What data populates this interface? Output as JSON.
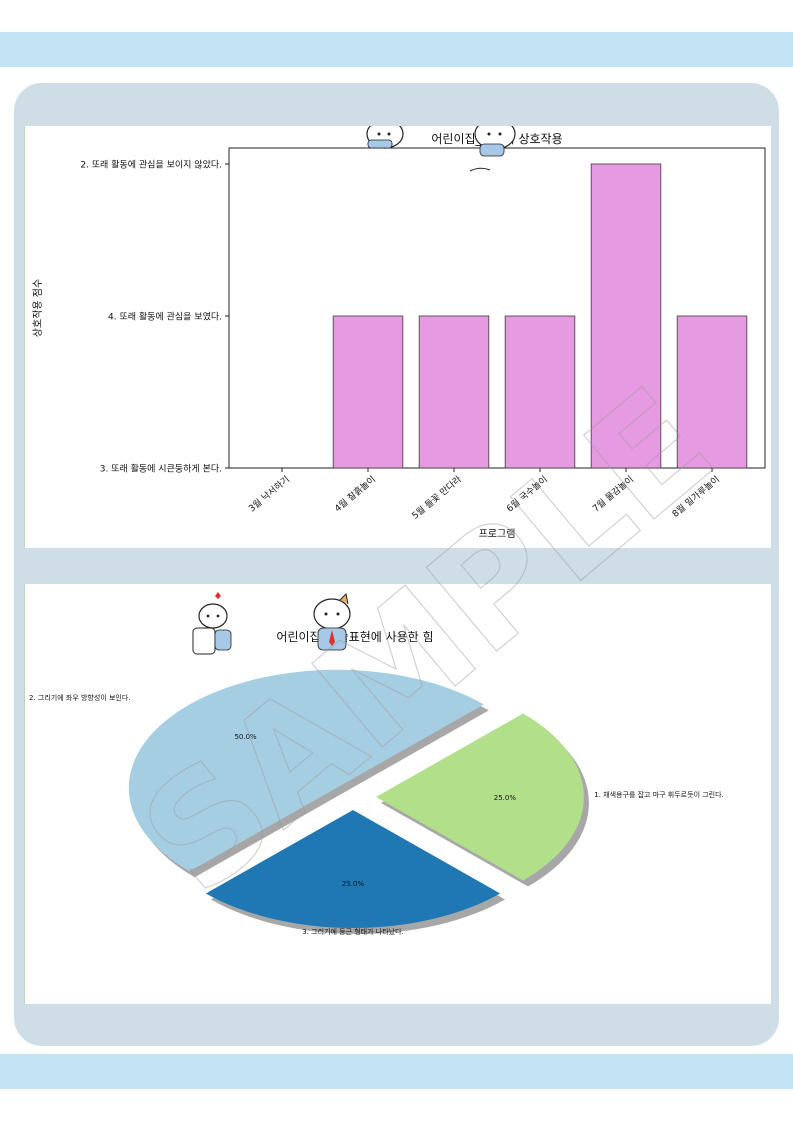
{
  "chart_data": [
    {
      "type": "bar",
      "title": "어린이집_사회적 상호작용",
      "xlabel": "프로그램",
      "ylabel": "상호작용 점수",
      "categories": [
        "3월 낙서하기",
        "4월 찰흙놀이",
        "5월 들꽃 만다라",
        "6월 국수놀이",
        "7월 물감놀이",
        "8월 밀가루놀이"
      ],
      "y_levels": [
        "3. 또래 활동에 시큰둥하게 본다.",
        "4. 또래 활동에 관심을 보였다.",
        "2. 또래 활동에 관심을 보이지 않았다."
      ],
      "values": [
        0,
        1,
        1,
        1,
        2,
        1
      ],
      "bar_color": "#e59ae2",
      "grid": false
    },
    {
      "type": "pie",
      "title": "어린이집_미술표현에 사용한 힘",
      "labels": [
        "1. 채색용구를 잡고 마구 휘두르듯이 그린다.",
        "3. 그리기에 둥근 형태가 나타났다.",
        "2. 그리기에 좌우 방향성이 보인다."
      ],
      "values": [
        25.0,
        25.0,
        50.0
      ],
      "value_labels": [
        "25.0%",
        "25.0%",
        "50.0%"
      ],
      "colors": [
        "#b2df8a",
        "#1f78b4",
        "#a6cee3"
      ]
    }
  ],
  "watermark": "SAMPLE",
  "colors": {
    "band": "#c2e4f4",
    "panel": "#cfdee6",
    "bar": "#e59ae2"
  }
}
